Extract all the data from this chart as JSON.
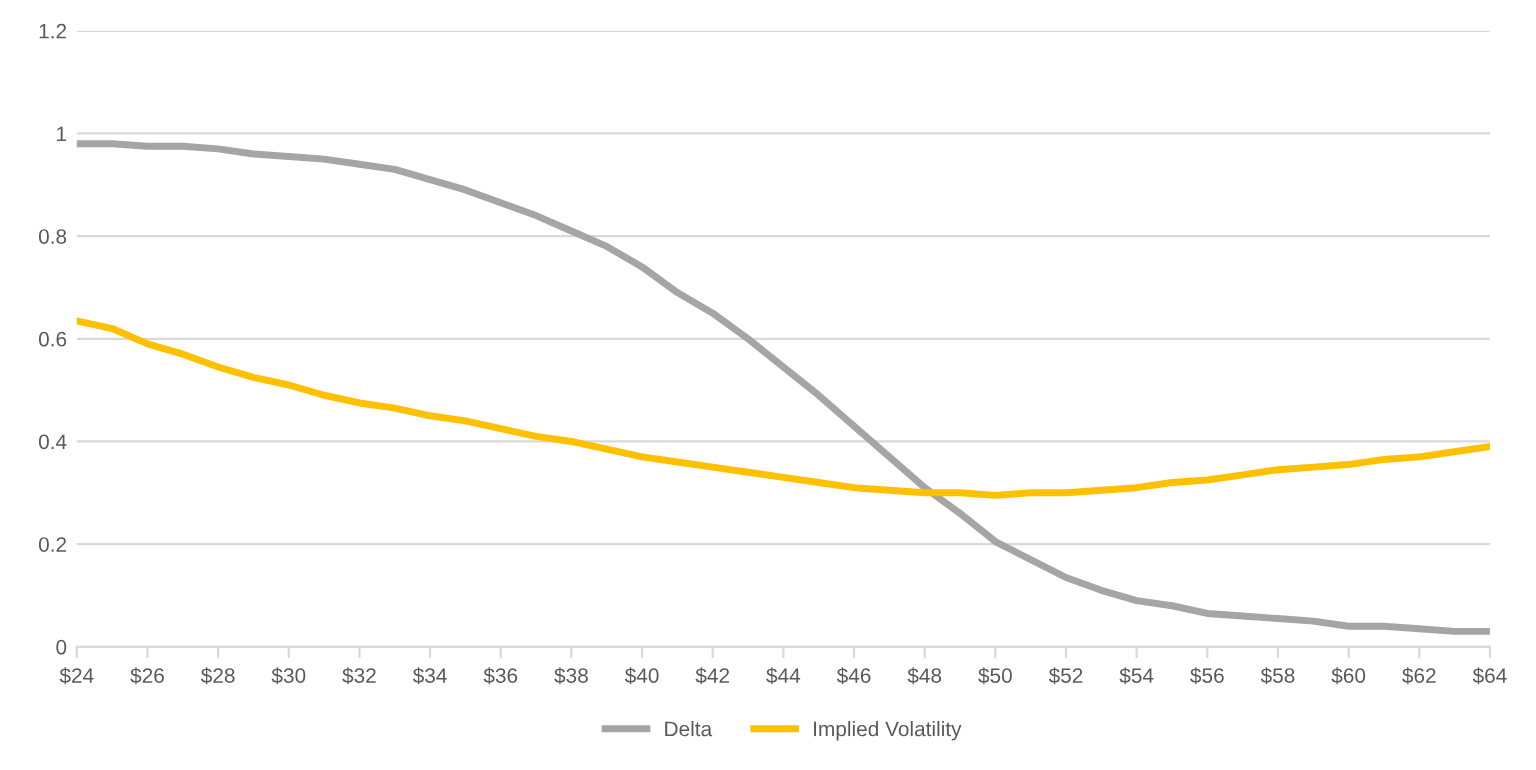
{
  "chart_data": {
    "type": "line",
    "x": [
      24,
      25,
      26,
      27,
      28,
      29,
      30,
      31,
      32,
      33,
      34,
      35,
      36,
      37,
      38,
      39,
      40,
      41,
      42,
      43,
      44,
      45,
      46,
      47,
      48,
      49,
      50,
      51,
      52,
      53,
      54,
      55,
      56,
      57,
      58,
      59,
      60,
      61,
      62,
      63,
      64
    ],
    "series": [
      {
        "name": "Delta",
        "color": "#a5a5a5",
        "values": [
          0.98,
          0.98,
          0.975,
          0.975,
          0.97,
          0.96,
          0.955,
          0.95,
          0.94,
          0.93,
          0.91,
          0.89,
          0.865,
          0.84,
          0.81,
          0.78,
          0.74,
          0.69,
          0.65,
          0.6,
          0.545,
          0.49,
          0.43,
          0.37,
          0.31,
          0.26,
          0.205,
          0.17,
          0.135,
          0.11,
          0.09,
          0.08,
          0.065,
          0.06,
          0.055,
          0.05,
          0.04,
          0.04,
          0.035,
          0.03,
          0.03
        ]
      },
      {
        "name": "Implied Volatility",
        "color": "#ffc000",
        "values": [
          0.635,
          0.62,
          0.59,
          0.57,
          0.545,
          0.525,
          0.51,
          0.49,
          0.475,
          0.465,
          0.45,
          0.44,
          0.425,
          0.41,
          0.4,
          0.385,
          0.37,
          0.36,
          0.35,
          0.34,
          0.33,
          0.32,
          0.31,
          0.305,
          0.3,
          0.3,
          0.295,
          0.3,
          0.3,
          0.305,
          0.31,
          0.32,
          0.325,
          0.335,
          0.345,
          0.35,
          0.355,
          0.365,
          0.37,
          0.38,
          0.39
        ]
      }
    ],
    "xlim": [
      24,
      64
    ],
    "xticks": [
      {
        "value": 24,
        "label": "$24"
      },
      {
        "value": 26,
        "label": "$26"
      },
      {
        "value": 28,
        "label": "$28"
      },
      {
        "value": 30,
        "label": "$30"
      },
      {
        "value": 32,
        "label": "$32"
      },
      {
        "value": 34,
        "label": "$34"
      },
      {
        "value": 36,
        "label": "$36"
      },
      {
        "value": 38,
        "label": "$38"
      },
      {
        "value": 40,
        "label": "$40"
      },
      {
        "value": 42,
        "label": "$42"
      },
      {
        "value": 44,
        "label": "$44"
      },
      {
        "value": 46,
        "label": "$46"
      },
      {
        "value": 48,
        "label": "$48"
      },
      {
        "value": 50,
        "label": "$50"
      },
      {
        "value": 52,
        "label": "$52"
      },
      {
        "value": 54,
        "label": "$54"
      },
      {
        "value": 56,
        "label": "$56"
      },
      {
        "value": 58,
        "label": "$58"
      },
      {
        "value": 60,
        "label": "$60"
      },
      {
        "value": 62,
        "label": "$62"
      },
      {
        "value": 64,
        "label": "$64"
      }
    ],
    "ylim": [
      0,
      1.2
    ],
    "yticks": [
      0,
      0.2,
      0.4,
      0.6,
      0.8,
      1,
      1.2
    ],
    "grid": "y",
    "legend": "bottom",
    "marker": "none",
    "line_style": "solid"
  }
}
